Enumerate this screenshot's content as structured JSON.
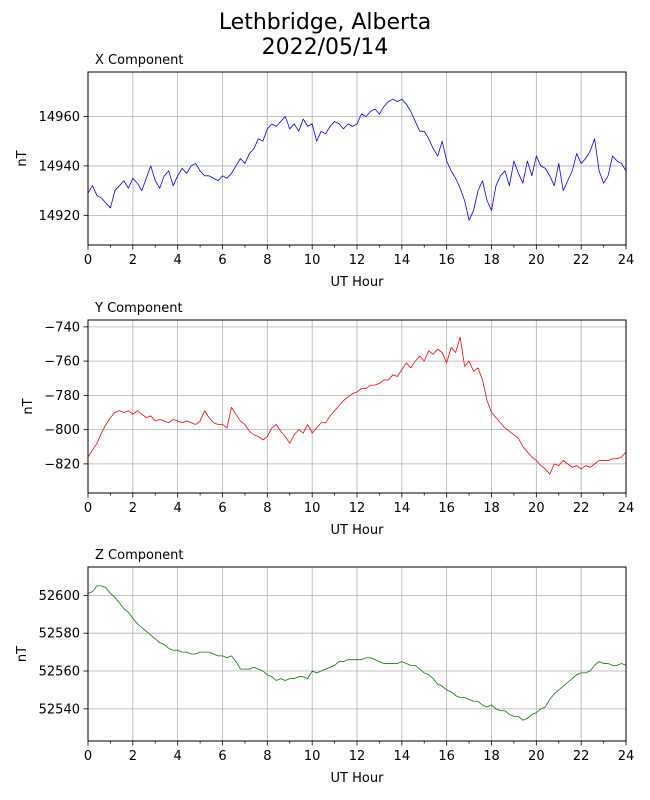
{
  "figure": {
    "title_line1": "Lethbridge, Alberta",
    "title_line2": "2022/05/14"
  },
  "chart_data": [
    {
      "type": "line",
      "title": "X Component",
      "xlabel": "UT Hour",
      "ylabel": "nT",
      "color": "#0000ff",
      "xlim": [
        0,
        24
      ],
      "ylim": [
        14908,
        14978
      ],
      "xticks": [
        0,
        2,
        4,
        6,
        8,
        10,
        12,
        14,
        16,
        18,
        20,
        22,
        24
      ],
      "yticks": [
        14920,
        14940,
        14960
      ],
      "grid": true,
      "series": [
        {
          "x": [
            0,
            0.2,
            0.4,
            0.6,
            0.8,
            1.0,
            1.2,
            1.4,
            1.6,
            1.8,
            2.0,
            2.2,
            2.4,
            2.6,
            2.8,
            3.0,
            3.2,
            3.4,
            3.6,
            3.8,
            4.0,
            4.2,
            4.4,
            4.6,
            4.8,
            5.0,
            5.2,
            5.4,
            5.6,
            5.8,
            6.0,
            6.2,
            6.4,
            6.6,
            6.8,
            7.0,
            7.2,
            7.4,
            7.6,
            7.8,
            8.0,
            8.2,
            8.4,
            8.6,
            8.8,
            9.0,
            9.2,
            9.4,
            9.6,
            9.8,
            10.0,
            10.2,
            10.4,
            10.6,
            10.8,
            11.0,
            11.2,
            11.4,
            11.6,
            11.8,
            12.0,
            12.2,
            12.4,
            12.6,
            12.8,
            13.0,
            13.2,
            13.4,
            13.6,
            13.8,
            14.0,
            14.2,
            14.4,
            14.6,
            14.8,
            15.0,
            15.2,
            15.4,
            15.6,
            15.8,
            16.0,
            16.2,
            16.4,
            16.6,
            16.8,
            17.0,
            17.2,
            17.4,
            17.6,
            17.8,
            18.0,
            18.2,
            18.4,
            18.6,
            18.8,
            19.0,
            19.2,
            19.4,
            19.6,
            19.8,
            20.0,
            20.2,
            20.4,
            20.6,
            20.8,
            21.0,
            21.2,
            21.4,
            21.6,
            21.8,
            22.0,
            22.2,
            22.4,
            22.6,
            22.8,
            23.0,
            23.2,
            23.4,
            23.6,
            23.8,
            24.0
          ],
          "y": [
            14929,
            14932,
            14928,
            14927,
            14925,
            14923,
            14930,
            14932,
            14934,
            14931,
            14935,
            14933,
            14930,
            14935,
            14940,
            14934,
            14931,
            14936,
            14938,
            14932,
            14936,
            14939,
            14937,
            14940,
            14941,
            14938,
            14936,
            14936,
            14935,
            14934,
            14936,
            14935,
            14937,
            14940,
            14943,
            14941,
            14945,
            14947,
            14951,
            14950,
            14955,
            14957,
            14956,
            14958,
            14960,
            14955,
            14957,
            14954,
            14959,
            14956,
            14957,
            14950,
            14954,
            14953,
            14956,
            14958,
            14957,
            14955,
            14957,
            14956,
            14957,
            14961,
            14960,
            14962,
            14963,
            14961,
            14964,
            14966,
            14967,
            14966,
            14967,
            14965,
            14962,
            14958,
            14954,
            14954,
            14951,
            14947,
            14944,
            14950,
            14942,
            14938,
            14935,
            14931,
            14926,
            14918,
            14922,
            14930,
            14934,
            14926,
            14922,
            14932,
            14936,
            14938,
            14932,
            14942,
            14937,
            14933,
            14942,
            14936,
            14944,
            14940,
            14939,
            14936,
            14932,
            14941,
            14930,
            14934,
            14938,
            14945,
            14941,
            14943,
            14946,
            14951,
            14938,
            14933,
            14936,
            14944,
            14942,
            14941,
            14938
          ]
        }
      ]
    },
    {
      "type": "line",
      "title": "Y Component",
      "xlabel": "UT Hour",
      "ylabel": "nT",
      "color": "#ff0000",
      "xlim": [
        0,
        24
      ],
      "ylim": [
        -837,
        -736
      ],
      "xticks": [
        0,
        2,
        4,
        6,
        8,
        10,
        12,
        14,
        16,
        18,
        20,
        22,
        24
      ],
      "yticks": [
        -820,
        -800,
        -780,
        -760,
        -740
      ],
      "grid": true,
      "series": [
        {
          "x": [
            0,
            0.2,
            0.4,
            0.6,
            0.8,
            1.0,
            1.2,
            1.4,
            1.6,
            1.8,
            2.0,
            2.2,
            2.4,
            2.6,
            2.8,
            3.0,
            3.2,
            3.4,
            3.6,
            3.8,
            4.0,
            4.2,
            4.4,
            4.6,
            4.8,
            5.0,
            5.2,
            5.4,
            5.6,
            5.8,
            6.0,
            6.2,
            6.4,
            6.6,
            6.8,
            7.0,
            7.2,
            7.4,
            7.6,
            7.8,
            8.0,
            8.2,
            8.4,
            8.6,
            8.8,
            9.0,
            9.2,
            9.4,
            9.6,
            9.8,
            10.0,
            10.2,
            10.4,
            10.6,
            10.8,
            11.0,
            11.2,
            11.4,
            11.6,
            11.8,
            12.0,
            12.2,
            12.4,
            12.6,
            12.8,
            13.0,
            13.2,
            13.4,
            13.6,
            13.8,
            14.0,
            14.2,
            14.4,
            14.6,
            14.8,
            15.0,
            15.2,
            15.4,
            15.6,
            15.8,
            16.0,
            16.2,
            16.4,
            16.6,
            16.8,
            17.0,
            17.2,
            17.4,
            17.6,
            17.8,
            18.0,
            18.2,
            18.4,
            18.6,
            18.8,
            19.0,
            19.2,
            19.4,
            19.6,
            19.8,
            20.0,
            20.2,
            20.4,
            20.6,
            20.8,
            21.0,
            21.2,
            21.4,
            21.6,
            21.8,
            22.0,
            22.2,
            22.4,
            22.6,
            22.8,
            23.0,
            23.2,
            23.4,
            23.6,
            23.8,
            24.0
          ],
          "y": [
            -816,
            -812,
            -808,
            -802,
            -797,
            -793,
            -790,
            -789,
            -790,
            -789,
            -791,
            -789,
            -791,
            -793,
            -792,
            -795,
            -794,
            -795,
            -796,
            -794,
            -795,
            -796,
            -795,
            -796,
            -797,
            -795,
            -789,
            -793,
            -796,
            -797,
            -797,
            -799,
            -787,
            -791,
            -795,
            -797,
            -801,
            -803,
            -804,
            -806,
            -804,
            -799,
            -797,
            -801,
            -804,
            -808,
            -803,
            -800,
            -802,
            -797,
            -802,
            -799,
            -796,
            -796,
            -792,
            -789,
            -786,
            -783,
            -781,
            -779,
            -778,
            -776,
            -776,
            -774,
            -774,
            -773,
            -771,
            -771,
            -768,
            -769,
            -765,
            -761,
            -764,
            -760,
            -757,
            -760,
            -754,
            -756,
            -753,
            -755,
            -761,
            -752,
            -755,
            -746,
            -763,
            -760,
            -766,
            -764,
            -771,
            -783,
            -790,
            -793,
            -796,
            -799,
            -801,
            -803,
            -805,
            -810,
            -813,
            -816,
            -818,
            -821,
            -823,
            -826,
            -820,
            -821,
            -818,
            -820,
            -822,
            -821,
            -823,
            -821,
            -822,
            -820,
            -818,
            -818,
            -818,
            -817,
            -817,
            -816,
            -813
          ]
        }
      ]
    },
    {
      "type": "line",
      "title": "Z Component",
      "xlabel": "UT Hour",
      "ylabel": "nT",
      "color": "#008000",
      "xlim": [
        0,
        24
      ],
      "ylim": [
        52523,
        52615
      ],
      "xticks": [
        0,
        2,
        4,
        6,
        8,
        10,
        12,
        14,
        16,
        18,
        20,
        22,
        24
      ],
      "yticks": [
        52540,
        52560,
        52580,
        52600
      ],
      "grid": true,
      "series": [
        {
          "x": [
            0,
            0.2,
            0.4,
            0.6,
            0.8,
            1.0,
            1.2,
            1.4,
            1.6,
            1.8,
            2.0,
            2.2,
            2.4,
            2.6,
            2.8,
            3.0,
            3.2,
            3.4,
            3.6,
            3.8,
            4.0,
            4.2,
            4.4,
            4.6,
            4.8,
            5.0,
            5.2,
            5.4,
            5.6,
            5.8,
            6.0,
            6.2,
            6.4,
            6.6,
            6.8,
            7.0,
            7.2,
            7.4,
            7.6,
            7.8,
            8.0,
            8.2,
            8.4,
            8.6,
            8.8,
            9.0,
            9.2,
            9.4,
            9.6,
            9.8,
            10.0,
            10.2,
            10.4,
            10.6,
            10.8,
            11.0,
            11.2,
            11.4,
            11.6,
            11.8,
            12.0,
            12.2,
            12.4,
            12.6,
            12.8,
            13.0,
            13.2,
            13.4,
            13.6,
            13.8,
            14.0,
            14.2,
            14.4,
            14.6,
            14.8,
            15.0,
            15.2,
            15.4,
            15.6,
            15.8,
            16.0,
            16.2,
            16.4,
            16.6,
            16.8,
            17.0,
            17.2,
            17.4,
            17.6,
            17.8,
            18.0,
            18.2,
            18.4,
            18.6,
            18.8,
            19.0,
            19.2,
            19.4,
            19.6,
            19.8,
            20.0,
            20.2,
            20.4,
            20.6,
            20.8,
            21.0,
            21.2,
            21.4,
            21.6,
            21.8,
            22.0,
            22.2,
            22.4,
            22.6,
            22.8,
            23.0,
            23.2,
            23.4,
            23.6,
            23.8,
            24.0
          ],
          "y": [
            52601,
            52602,
            52605,
            52605,
            52604,
            52601,
            52599,
            52596,
            52593,
            52591,
            52588,
            52585,
            52583,
            52581,
            52579,
            52577,
            52575,
            52574,
            52572,
            52571,
            52571,
            52570,
            52570,
            52569,
            52569,
            52570,
            52570,
            52570,
            52569,
            52568,
            52568,
            52567,
            52568,
            52565,
            52561,
            52561,
            52561,
            52562,
            52561,
            52560,
            52558,
            52557,
            52555,
            52556,
            52555,
            52556,
            52556,
            52557,
            52557,
            52556,
            52560,
            52559,
            52560,
            52561,
            52562,
            52563,
            52565,
            52565,
            52566,
            52566,
            52566,
            52566,
            52567,
            52567,
            52566,
            52565,
            52564,
            52564,
            52564,
            52564,
            52565,
            52564,
            52563,
            52563,
            52561,
            52559,
            52558,
            52556,
            52553,
            52552,
            52550,
            52549,
            52547,
            52546,
            52546,
            52545,
            52544,
            52544,
            52542,
            52541,
            52542,
            52540,
            52539,
            52539,
            52537,
            52536,
            52536,
            52534,
            52535,
            52537,
            52538,
            52540,
            52541,
            52545,
            52548,
            52550,
            52552,
            52554,
            52556,
            52558,
            52559,
            52559,
            52560,
            52563,
            52565,
            52564,
            52564,
            52563,
            52563,
            52564,
            52563
          ]
        }
      ]
    }
  ]
}
